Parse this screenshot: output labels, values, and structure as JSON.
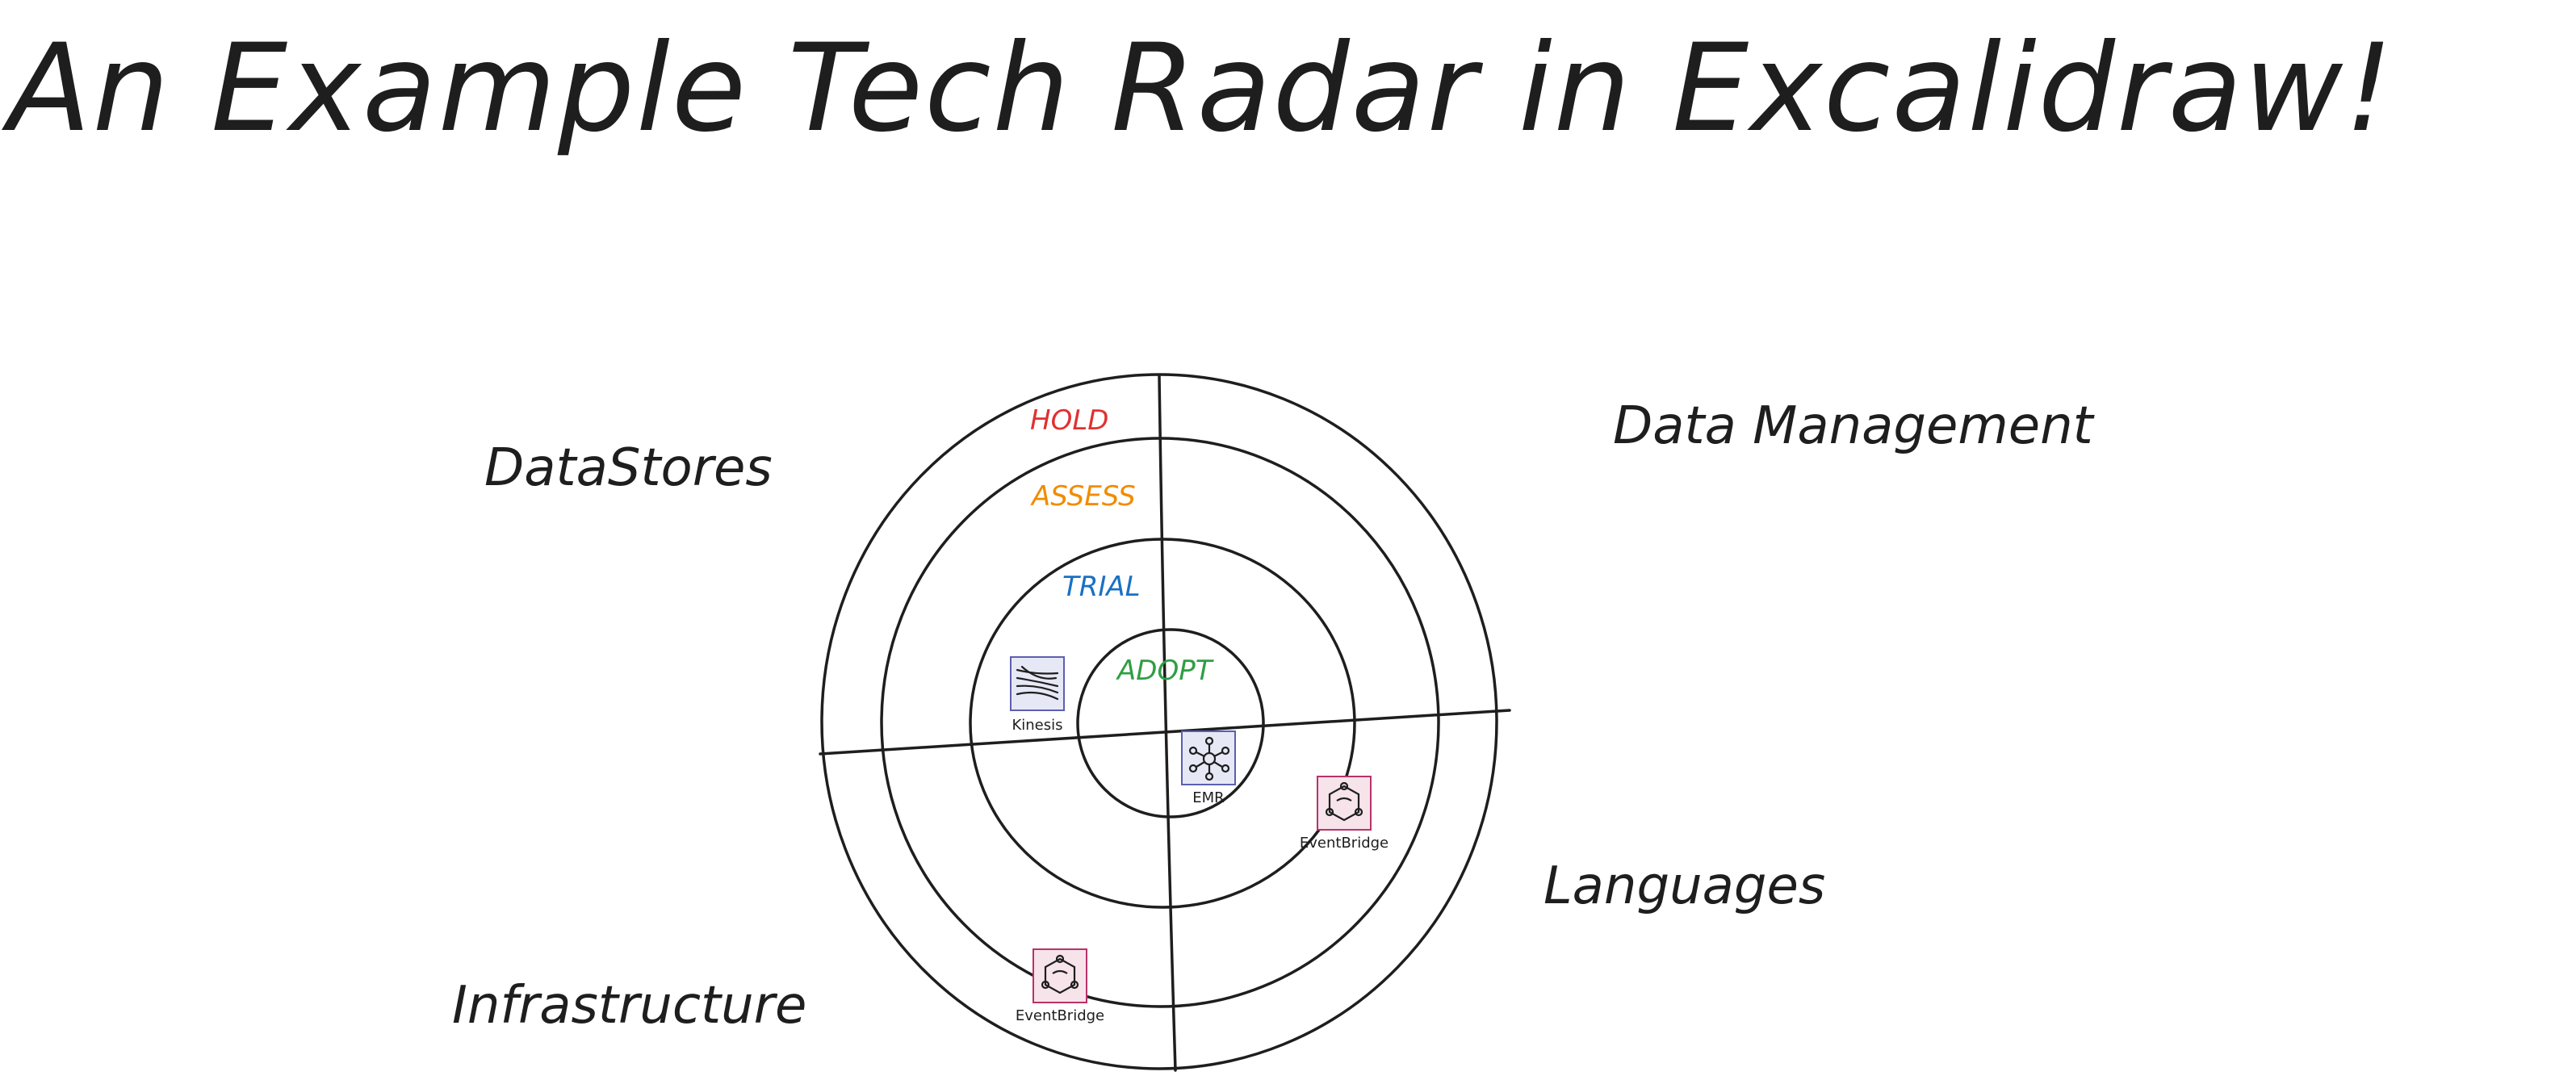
{
  "title": "An Example Tech Radar in Excalidraw!",
  "quadrants": {
    "top_left": "DataStores",
    "top_right": "Data Management",
    "bottom_left": "Infrastructure",
    "bottom_right": "Languages"
  },
  "rings": [
    {
      "name": "HOLD",
      "color": "#e03131"
    },
    {
      "name": "ASSESS",
      "color": "#f08c00"
    },
    {
      "name": "TRIAL",
      "color": "#1971c2"
    },
    {
      "name": "ADOPT",
      "color": "#2f9e44"
    }
  ],
  "items": [
    {
      "name": "Kinesis",
      "icon": "kinesis-streams-icon",
      "ring": "TRIAL",
      "quadrant": "DataStores"
    },
    {
      "name": "EMR",
      "icon": "emr-cluster-icon",
      "ring": "ADOPT",
      "quadrant": "Languages"
    },
    {
      "name": "EventBridge",
      "icon": "eventbridge-icon",
      "ring": "ASSESS",
      "quadrant": "Languages"
    },
    {
      "name": "EventBridge",
      "icon": "eventbridge-icon",
      "ring": "HOLD",
      "quadrant": "Infrastructure"
    }
  ],
  "colors": {
    "stroke": "#1e1e1e",
    "icon_blue_bg": "#e7e8f6",
    "icon_pink_bg": "#f7e3ea",
    "icon_border_blue": "#5b5fb0",
    "icon_border_pink": "#b8336a"
  }
}
